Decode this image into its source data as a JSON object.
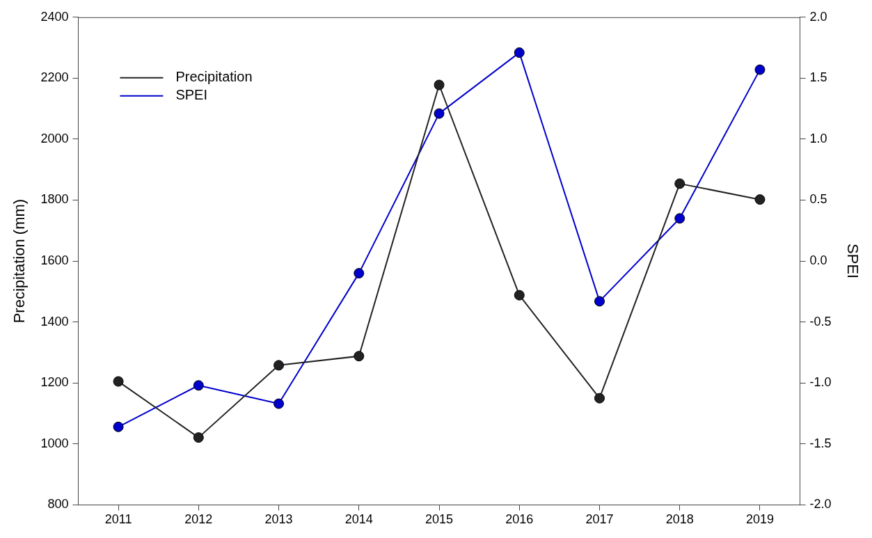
{
  "chart_data": {
    "type": "line",
    "ylabel": "Precipitation (mm)",
    "y2label": "SPEI",
    "categories": [
      "2011",
      "2012",
      "2013",
      "2014",
      "2015",
      "2016",
      "2017",
      "2018",
      "2019"
    ],
    "series": [
      {
        "name": "Precipitation",
        "color": "#222222",
        "values": [
          1205,
          1021,
          1258,
          1288,
          2178,
          1488,
          1150,
          1854,
          1802
        ]
      },
      {
        "name": "SPEI",
        "color": "#0000cc",
        "axis": "y2",
        "values": [
          -1.36,
          -1.02,
          -1.17,
          -0.1,
          1.21,
          1.71,
          -0.33,
          0.35,
          1.57
        ]
      }
    ],
    "ylim": [
      800,
      2400
    ],
    "yticks": [
      800,
      1000,
      1200,
      1400,
      1600,
      1800,
      2000,
      2200,
      2400
    ],
    "y2lim": [
      -2.0,
      2.0
    ],
    "y2ticks": [
      {
        "value": -2,
        "label": "-2.0"
      },
      {
        "value": -1.5,
        "label": "-1.5"
      },
      {
        "value": -1,
        "label": "-1.0"
      },
      {
        "value": -0.5,
        "label": "-0.5"
      },
      {
        "value": 0,
        "label": "0.0"
      },
      {
        "value": 0.5,
        "label": "0.5"
      },
      {
        "value": 1,
        "label": "1.0"
      },
      {
        "value": 1.5,
        "label": "1.5"
      },
      {
        "value": 2,
        "label": "2.0"
      }
    ],
    "grid": false,
    "legend": "top left",
    "marker": "circle",
    "line_style": "solid"
  }
}
